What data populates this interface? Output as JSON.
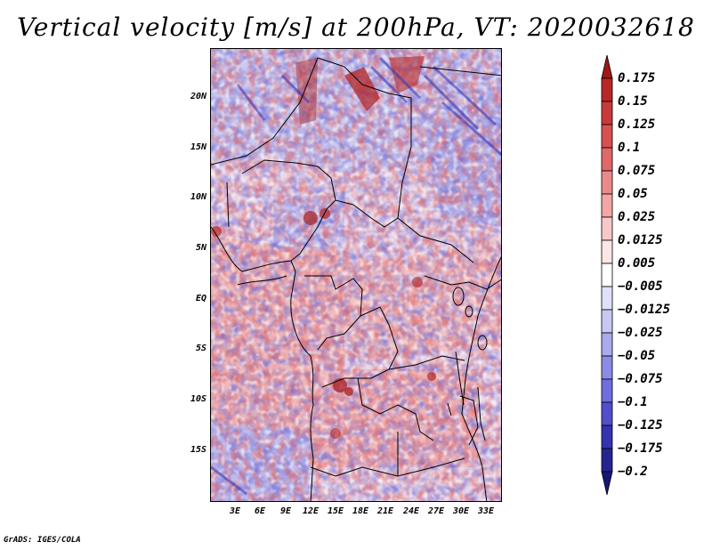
{
  "title": "Vertical velocity [m/s] at 200hPa, VT: 2020032618",
  "credit": "GrADS: IGES/COLA",
  "map": {
    "lat_range": [
      -20,
      24
    ],
    "lon_range": [
      -0.5,
      34
    ],
    "y_ticks": [
      "20N",
      "15N",
      "10N",
      "5N",
      "EQ",
      "5S",
      "10S",
      "15S"
    ],
    "x_ticks": [
      "3E",
      "6E",
      "9E",
      "12E",
      "15E",
      "18E",
      "21E",
      "24E",
      "27E",
      "30E",
      "33E"
    ]
  },
  "colorbar": {
    "labels": [
      "0.175",
      "0.15",
      "0.125",
      "0.1",
      "0.075",
      "0.05",
      "0.025",
      "0.0125",
      "0.005",
      "−0.005",
      "−0.0125",
      "−0.025",
      "−0.05",
      "−0.075",
      "−0.1",
      "−0.125",
      "−0.175",
      "−0.2"
    ],
    "colors": [
      "#a01818",
      "#b82828",
      "#c83a3a",
      "#d85050",
      "#e06868",
      "#ea8a8a",
      "#f2a6a6",
      "#f8c8c8",
      "#fce6e6",
      "#ffffff",
      "#e0e0fa",
      "#c8c8f2",
      "#aaaaee",
      "#8c8ce6",
      "#6e6ede",
      "#5050cc",
      "#3434b0",
      "#242490",
      "#161678"
    ]
  }
}
